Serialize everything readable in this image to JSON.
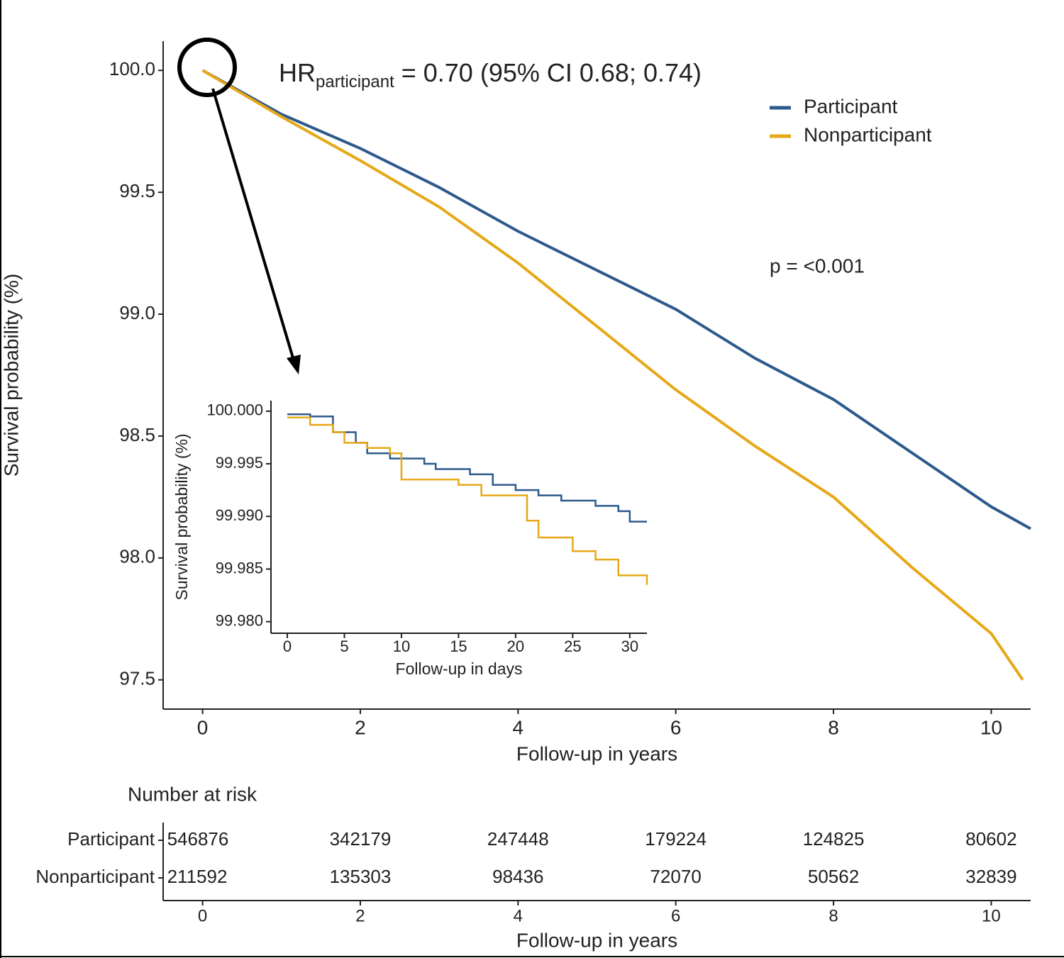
{
  "chart_data": [
    {
      "type": "line",
      "y_label": "Survival probability (%)",
      "x_label": "Follow-up in years",
      "annotation_hr": {
        "main": "HR",
        "sub": "participant",
        "rest": " = 0.70 (95% CI 0.68; 0.74)"
      },
      "annotation_p": "p = <0.001",
      "xlim": [
        -0.5,
        10.5
      ],
      "ylim": [
        97.38,
        100.12
      ],
      "xticks": [
        0,
        2,
        4,
        6,
        8,
        10
      ],
      "yticks": [
        {
          "value": 100,
          "label": "100.0"
        },
        99.5,
        {
          "value": 99,
          "label": "99.0"
        },
        98.5,
        {
          "value": 98,
          "label": "98.0"
        },
        97.5
      ],
      "legend": "top-right",
      "series": [
        {
          "name": "Participant",
          "color": "#2d5a8c",
          "x": [
            0,
            1,
            2,
            3,
            4,
            5,
            6,
            7,
            8,
            9,
            10,
            10.5
          ],
          "values": [
            100,
            99.82,
            99.68,
            99.52,
            99.34,
            99.18,
            99.02,
            98.82,
            98.65,
            98.43,
            98.21,
            98.12
          ]
        },
        {
          "name": "Nonparticipant",
          "color": "#e6a817",
          "x": [
            0,
            1,
            2,
            3,
            4,
            5,
            6,
            7,
            8,
            9,
            10,
            10.4
          ],
          "values": [
            100,
            99.81,
            99.63,
            99.44,
            99.21,
            98.95,
            98.69,
            98.46,
            98.25,
            97.96,
            97.69,
            97.5
          ]
        }
      ]
    },
    {
      "type": "step",
      "y_label": "Survival probability (%)",
      "x_label": "Follow-up in days",
      "xlim": [
        -1.43,
        31.5
      ],
      "ylim": [
        99.9789,
        100.001
      ],
      "xticks": [
        0,
        5,
        10,
        15,
        20,
        25,
        30
      ],
      "yticks": [
        {
          "value": 100,
          "label": "100.000"
        },
        99.995,
        {
          "value": 99.99,
          "label": "99.990"
        },
        99.985,
        {
          "value": 99.98,
          "label": "99.980"
        }
      ],
      "series": [
        {
          "name": "Participant",
          "color": "#2d5a8c",
          "x": [
            0,
            2,
            4,
            6,
            7,
            9,
            12,
            13,
            16,
            18,
            20,
            22,
            24,
            27,
            29,
            30,
            31.5
          ],
          "values": [
            99.9997,
            99.9995,
            99.998,
            99.997,
            99.996,
            99.9955,
            99.995,
            99.9945,
            99.994,
            99.993,
            99.9925,
            99.992,
            99.9915,
            99.991,
            99.9905,
            99.9895,
            99.9895
          ]
        },
        {
          "name": "Nonparticipant",
          "color": "#e6a817",
          "x": [
            0,
            2,
            4,
            5,
            7,
            9,
            10,
            15,
            17,
            21,
            22,
            25,
            27,
            29,
            31.5
          ],
          "values": [
            99.9994,
            99.9987,
            99.998,
            99.997,
            99.9965,
            99.996,
            99.9935,
            99.993,
            99.992,
            99.9896,
            99.988,
            99.9867,
            99.9859,
            99.9844,
            99.9835
          ]
        }
      ]
    },
    {
      "type": "table",
      "title": "Number at risk",
      "x_label": "Follow-up in years",
      "xlim": [
        -0.5,
        10.5
      ],
      "xticks": [
        0,
        2,
        4,
        6,
        8,
        10
      ],
      "rows": [
        {
          "name": "Participant",
          "color": "#2d5a8c",
          "values": [
            546876,
            342179,
            247448,
            179224,
            124825,
            80602
          ]
        },
        {
          "name": "Nonparticipant",
          "color": "#e6a817",
          "values": [
            211592,
            135303,
            98436,
            72070,
            50562,
            32839
          ]
        }
      ]
    }
  ]
}
